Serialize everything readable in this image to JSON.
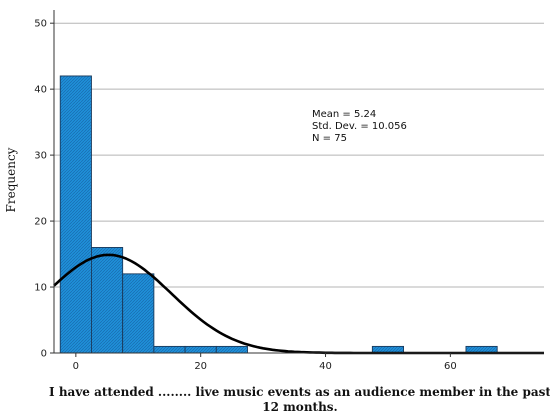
{
  "chart_data": {
    "type": "bar",
    "subtype": "histogram",
    "xlabel_lines": [
      "I have attended ........ live music events as an audience member in the past",
      "12 months."
    ],
    "ylabel": "Frequency",
    "bin_width": 5,
    "bins": [
      {
        "start": -2.5,
        "end": 2.5,
        "count": 42
      },
      {
        "start": 2.5,
        "end": 7.5,
        "count": 16
      },
      {
        "start": 7.5,
        "end": 12.5,
        "count": 12
      },
      {
        "start": 12.5,
        "end": 17.5,
        "count": 1
      },
      {
        "start": 17.5,
        "end": 22.5,
        "count": 1
      },
      {
        "start": 22.5,
        "end": 27.5,
        "count": 1
      },
      {
        "start": 47.5,
        "end": 52.5,
        "count": 1
      },
      {
        "start": 62.5,
        "end": 67.5,
        "count": 1
      }
    ],
    "xticks": [
      0,
      20,
      40,
      60
    ],
    "yticks": [
      0,
      10,
      20,
      30,
      40,
      50
    ],
    "xlim": [
      -3.5,
      75
    ],
    "ylim": [
      0,
      52
    ],
    "grid": "horizontal",
    "normal_curve": {
      "mean": 5.24,
      "std": 10.056,
      "n": 75
    },
    "stats": [
      "Mean = 5.24",
      "Std. Dev. = 10.056",
      "N = 75"
    ],
    "colors": {
      "bar_fill": "#1f8fd8",
      "bar_stroke": "#1a3a5c",
      "curve": "#000000",
      "grid": "#b5b5b5"
    }
  }
}
